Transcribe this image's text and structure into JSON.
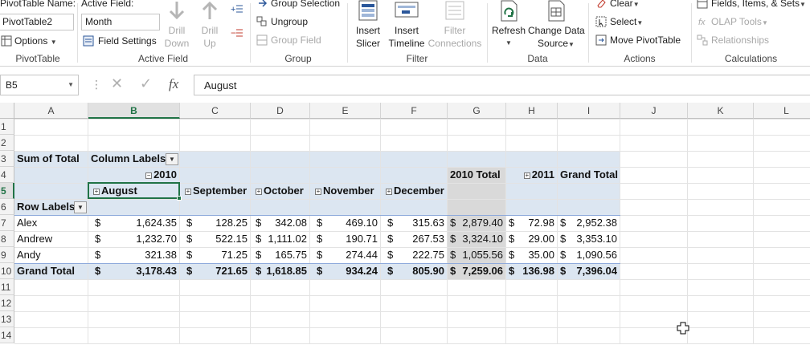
{
  "ribbon": {
    "pivottable": {
      "name_label": "PivotTable Name:",
      "name_value": "PivotTable2",
      "options_label": "Options",
      "group_label": "PivotTable"
    },
    "active_field": {
      "label": "Active Field:",
      "value": "Month",
      "field_settings_label": "Field Settings",
      "drill_down_line1": "Drill",
      "drill_down_line2": "Down",
      "drill_up_line1": "Drill",
      "drill_up_line2": "Up",
      "group_label": "Active Field"
    },
    "group": {
      "group_selection_label": "Group Selection",
      "ungroup_label": "Ungroup",
      "group_field_label": "Group Field",
      "group_label": "Group"
    },
    "filter": {
      "insert_slicer_line1": "Insert",
      "insert_slicer_line2": "Slicer",
      "insert_timeline_line1": "Insert",
      "insert_timeline_line2": "Timeline",
      "filter_connections_line1": "Filter",
      "filter_connections_line2": "Connections",
      "group_label": "Filter"
    },
    "data": {
      "refresh_label": "Refresh",
      "change_source_line1": "Change Data",
      "change_source_line2": "Source",
      "group_label": "Data"
    },
    "actions": {
      "clear_label": "Clear",
      "select_label": "Select",
      "move_label": "Move PivotTable",
      "group_label": "Actions"
    },
    "calculations": {
      "fields_items_label": "Fields, Items, & Sets",
      "olap_label": "OLAP Tools",
      "relationships_label": "Relationships",
      "group_label": "Calculations"
    }
  },
  "formula_bar": {
    "name_box": "B5",
    "cancel_glyph": "✕",
    "enter_glyph": "✓",
    "fx_glyph": "fx",
    "formula": "August"
  },
  "columns": [
    "A",
    "B",
    "C",
    "D",
    "E",
    "F",
    "G",
    "H",
    "I",
    "J",
    "K",
    "L"
  ],
  "rows": [
    "1",
    "2",
    "3",
    "4",
    "5",
    "6",
    "7",
    "8",
    "9",
    "10",
    "11",
    "12",
    "13",
    "14"
  ],
  "pivot": {
    "corner": "Sum of Total",
    "column_labels": "Column Labels",
    "year_2010": "2010",
    "year_2010_total": "2010 Total",
    "year_2011": "2011",
    "grand_total_col": "Grand Total",
    "row_labels": "Row Labels",
    "months": [
      "August",
      "September",
      "October",
      "November",
      "December"
    ],
    "currency": "$",
    "data_rows": [
      {
        "name": "Alex",
        "aug": "1,624.35",
        "sep": "128.25",
        "oct": "342.08",
        "nov": "469.10",
        "dec": "315.63",
        "t2010": "2,879.40",
        "y2011": "72.98",
        "grand": "2,952.38"
      },
      {
        "name": "Andrew",
        "aug": "1,232.70",
        "sep": "522.15",
        "oct": "1,111.02",
        "nov": "190.71",
        "dec": "267.53",
        "t2010": "3,324.10",
        "y2011": "29.00",
        "grand": "3,353.10"
      },
      {
        "name": "Andy",
        "aug": "321.38",
        "sep": "71.25",
        "oct": "165.75",
        "nov": "274.44",
        "dec": "222.75",
        "t2010": "1,055.56",
        "y2011": "35.00",
        "grand": "1,090.56"
      }
    ],
    "grand_total_row": {
      "name": "Grand Total",
      "aug": "3,178.43",
      "sep": "721.65",
      "oct": "1,618.85",
      "nov": "934.24",
      "dec": "805.90",
      "t2010": "7,259.06",
      "y2011": "136.98",
      "grand": "7,396.04"
    }
  },
  "colors": {
    "accent": "#217346",
    "pivot_band": "#dce6f1",
    "total_shade": "#d9d9d9"
  }
}
